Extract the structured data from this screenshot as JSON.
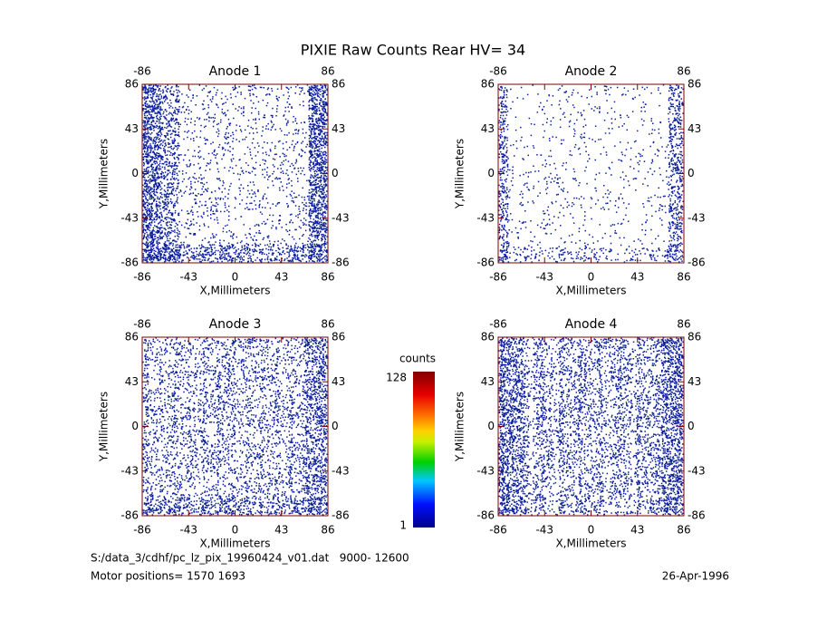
{
  "title": "PIXIE Raw Counts Rear HV= 34",
  "chart_data": [
    {
      "type": "image",
      "title": "Anode 1",
      "xlabel": "X,Millimeters",
      "ylabel": "Y,Millimeters",
      "xlim": [
        -86,
        86
      ],
      "ylim": [
        -86,
        86
      ],
      "xticks": [
        -86,
        -43,
        0,
        43,
        86
      ],
      "yticks": [
        -86,
        -43,
        0,
        43,
        86
      ],
      "color": "#0b1f9c"
    },
    {
      "type": "image",
      "title": "Anode 2",
      "xlabel": "X,Millimeters",
      "ylabel": "Y,Millimeters",
      "xlim": [
        -86,
        86
      ],
      "ylim": [
        -86,
        86
      ],
      "xticks": [
        -86,
        -43,
        0,
        43,
        86
      ],
      "yticks": [
        -86,
        -43,
        0,
        43,
        86
      ],
      "color": "#0b1f9c"
    },
    {
      "type": "image",
      "title": "Anode 3",
      "xlabel": "X,Millimeters",
      "ylabel": "Y,Millimeters",
      "xlim": [
        -86,
        86
      ],
      "ylim": [
        -86,
        86
      ],
      "xticks": [
        -86,
        -43,
        0,
        43,
        86
      ],
      "yticks": [
        -86,
        -43,
        0,
        43,
        86
      ],
      "color": "#0b1f9c"
    },
    {
      "type": "image",
      "title": "Anode 4",
      "xlabel": "X,Millimeters",
      "ylabel": "Y,Millimeters",
      "xlim": [
        -86,
        86
      ],
      "ylim": [
        -86,
        86
      ],
      "xticks": [
        -86,
        -43,
        0,
        43,
        86
      ],
      "yticks": [
        -86,
        -43,
        0,
        43,
        86
      ],
      "color": "#0b1f9c"
    }
  ],
  "colorbar": {
    "title": "counts",
    "range": [
      1,
      128
    ]
  },
  "footer": {
    "file": "S:/data_3/cdhf/pc_lz_pix_19960424_v01.dat   9000- 12600",
    "motor": "Motor positions= 1570 1693",
    "date": "26-Apr-1996"
  }
}
